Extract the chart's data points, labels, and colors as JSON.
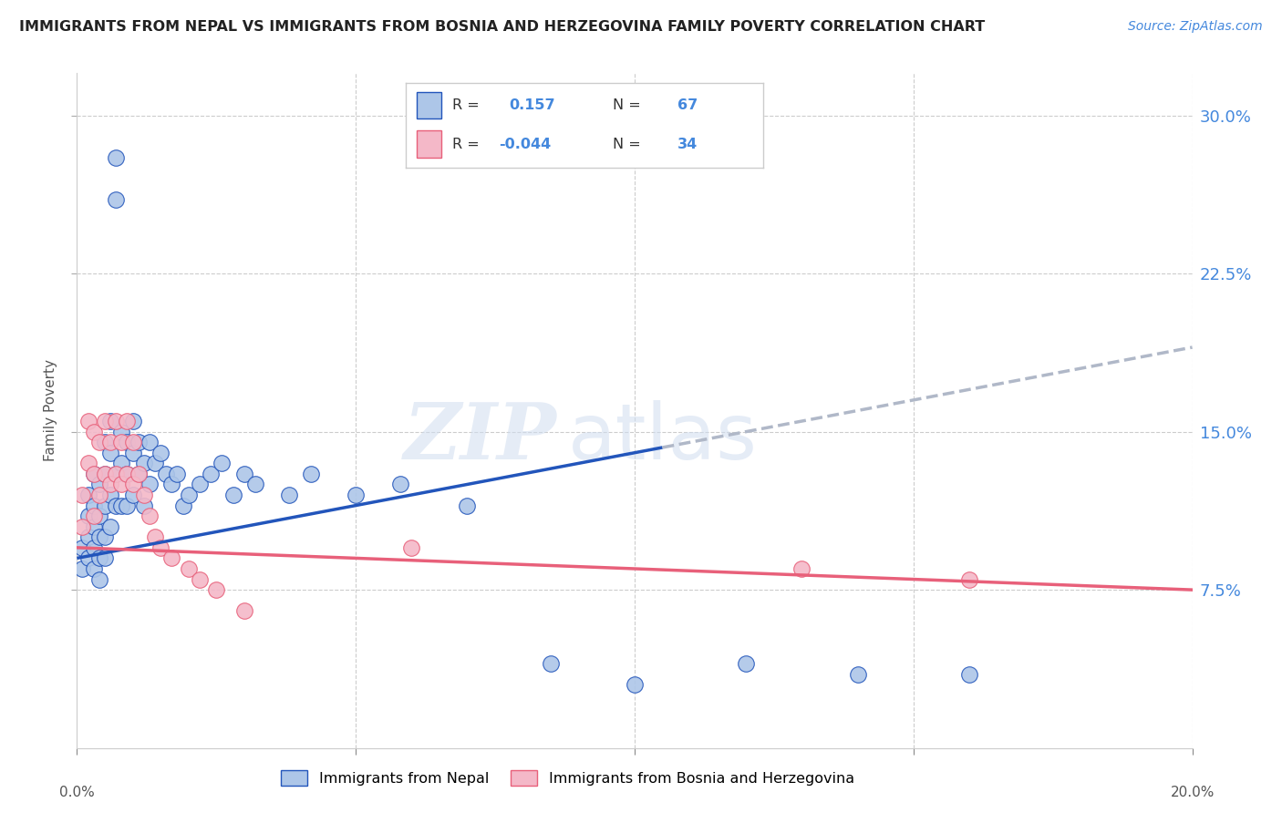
{
  "title": "IMMIGRANTS FROM NEPAL VS IMMIGRANTS FROM BOSNIA AND HERZEGOVINA FAMILY POVERTY CORRELATION CHART",
  "source": "Source: ZipAtlas.com",
  "ylabel": "Family Poverty",
  "ytick_values": [
    0.075,
    0.15,
    0.225,
    0.3
  ],
  "xlim": [
    0.0,
    0.2
  ],
  "ylim": [
    0.0,
    0.32
  ],
  "nepal_color": "#adc6e8",
  "bosnia_color": "#f4b8c8",
  "nepal_line_color": "#2255bb",
  "bosnia_line_color": "#e8607a",
  "trendline_extend_color": "#b0b8c8",
  "nepal_scatter_x": [
    0.001,
    0.001,
    0.002,
    0.002,
    0.002,
    0.002,
    0.003,
    0.003,
    0.003,
    0.003,
    0.003,
    0.004,
    0.004,
    0.004,
    0.004,
    0.004,
    0.005,
    0.005,
    0.005,
    0.005,
    0.005,
    0.006,
    0.006,
    0.006,
    0.006,
    0.007,
    0.007,
    0.007,
    0.007,
    0.008,
    0.008,
    0.008,
    0.009,
    0.009,
    0.009,
    0.01,
    0.01,
    0.01,
    0.011,
    0.011,
    0.012,
    0.012,
    0.013,
    0.013,
    0.014,
    0.015,
    0.016,
    0.017,
    0.018,
    0.019,
    0.02,
    0.022,
    0.024,
    0.026,
    0.028,
    0.03,
    0.032,
    0.038,
    0.042,
    0.05,
    0.058,
    0.07,
    0.085,
    0.1,
    0.12,
    0.14,
    0.16
  ],
  "nepal_scatter_y": [
    0.095,
    0.085,
    0.12,
    0.11,
    0.1,
    0.09,
    0.13,
    0.115,
    0.105,
    0.095,
    0.085,
    0.125,
    0.11,
    0.1,
    0.09,
    0.08,
    0.145,
    0.13,
    0.115,
    0.1,
    0.09,
    0.155,
    0.14,
    0.12,
    0.105,
    0.28,
    0.26,
    0.13,
    0.115,
    0.15,
    0.135,
    0.115,
    0.145,
    0.13,
    0.115,
    0.155,
    0.14,
    0.12,
    0.145,
    0.13,
    0.135,
    0.115,
    0.145,
    0.125,
    0.135,
    0.14,
    0.13,
    0.125,
    0.13,
    0.115,
    0.12,
    0.125,
    0.13,
    0.135,
    0.12,
    0.13,
    0.125,
    0.12,
    0.13,
    0.12,
    0.125,
    0.115,
    0.04,
    0.03,
    0.04,
    0.035,
    0.035
  ],
  "bosnia_scatter_x": [
    0.001,
    0.001,
    0.002,
    0.002,
    0.003,
    0.003,
    0.003,
    0.004,
    0.004,
    0.005,
    0.005,
    0.006,
    0.006,
    0.007,
    0.007,
    0.008,
    0.008,
    0.009,
    0.009,
    0.01,
    0.01,
    0.011,
    0.012,
    0.013,
    0.014,
    0.015,
    0.017,
    0.02,
    0.022,
    0.025,
    0.03,
    0.06,
    0.13,
    0.16
  ],
  "bosnia_scatter_y": [
    0.12,
    0.105,
    0.155,
    0.135,
    0.15,
    0.13,
    0.11,
    0.145,
    0.12,
    0.155,
    0.13,
    0.145,
    0.125,
    0.155,
    0.13,
    0.145,
    0.125,
    0.155,
    0.13,
    0.145,
    0.125,
    0.13,
    0.12,
    0.11,
    0.1,
    0.095,
    0.09,
    0.085,
    0.08,
    0.075,
    0.065,
    0.095,
    0.085,
    0.08
  ],
  "nepal_trend_x": [
    0.0,
    0.105,
    0.105,
    0.2
  ],
  "nepal_trend_solid_end": 0.105,
  "watermark_zip": "ZIP",
  "watermark_atlas": "atlas",
  "legend_label_nepal": "Immigrants from Nepal",
  "legend_label_bosnia": "Immigrants from Bosnia and Herzegovina",
  "background_color": "#ffffff",
  "grid_color": "#cccccc",
  "right_axis_color": "#4488dd"
}
